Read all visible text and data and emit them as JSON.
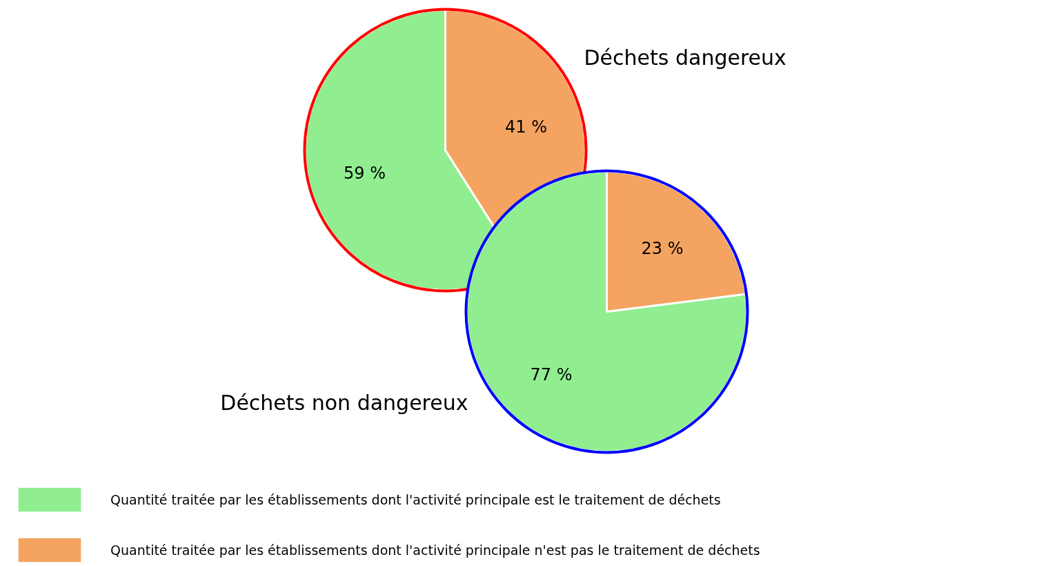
{
  "chart_data": [
    {
      "type": "pie",
      "title": "Déchets dangereux",
      "categories": [
        "Quantité traitée par les établissements dont l'activité principale est le traitement de déchets",
        "Quantité traitée par les établissements dont l'activité principale n'est pas le traitement de déchets"
      ],
      "values": [
        59,
        41
      ],
      "colors": [
        "#90ee90",
        "#f4a460"
      ],
      "value_labels": [
        "59 %",
        "41 %"
      ],
      "legend": "bottom"
    },
    {
      "type": "pie",
      "title": "Déchets non dangereux",
      "categories": [
        null,
        null
      ],
      "values": [
        77,
        23
      ],
      "colors": [
        "#90ee90",
        "#f4a460"
      ],
      "value_labels": [
        "77 %",
        "23 %"
      ]
    }
  ]
}
